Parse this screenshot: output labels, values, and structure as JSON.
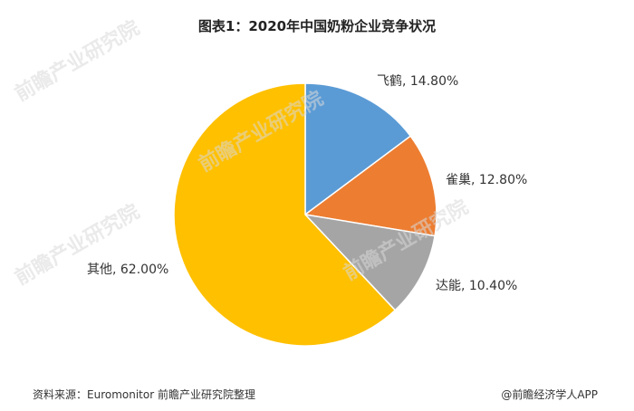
{
  "header": {
    "title": "图表1：2020年中国奶粉企业竞争状况"
  },
  "chart_data": {
    "type": "pie",
    "title": "图表1：2020年中国奶粉企业竞争状况",
    "start_angle_deg": 0,
    "direction": "clockwise",
    "slices": [
      {
        "name": "飞鹤",
        "value": 14.8,
        "label": "飞鹤, 14.80%",
        "color": "#5b9bd5"
      },
      {
        "name": "雀巢",
        "value": 12.8,
        "label": "雀巢, 12.80%",
        "color": "#ed7d31"
      },
      {
        "name": "达能",
        "value": 10.4,
        "label": "达能, 10.40%",
        "color": "#a5a5a5"
      },
      {
        "name": "其他",
        "value": 62.0,
        "label": "其他, 62.00%",
        "color": "#ffc000"
      }
    ]
  },
  "watermarks": {
    "brand": "前瞻产业研究院"
  },
  "footer": {
    "source": "资料来源：Euromonitor 前瞻产业研究院整理",
    "brand": "@前瞻经济学人APP"
  }
}
